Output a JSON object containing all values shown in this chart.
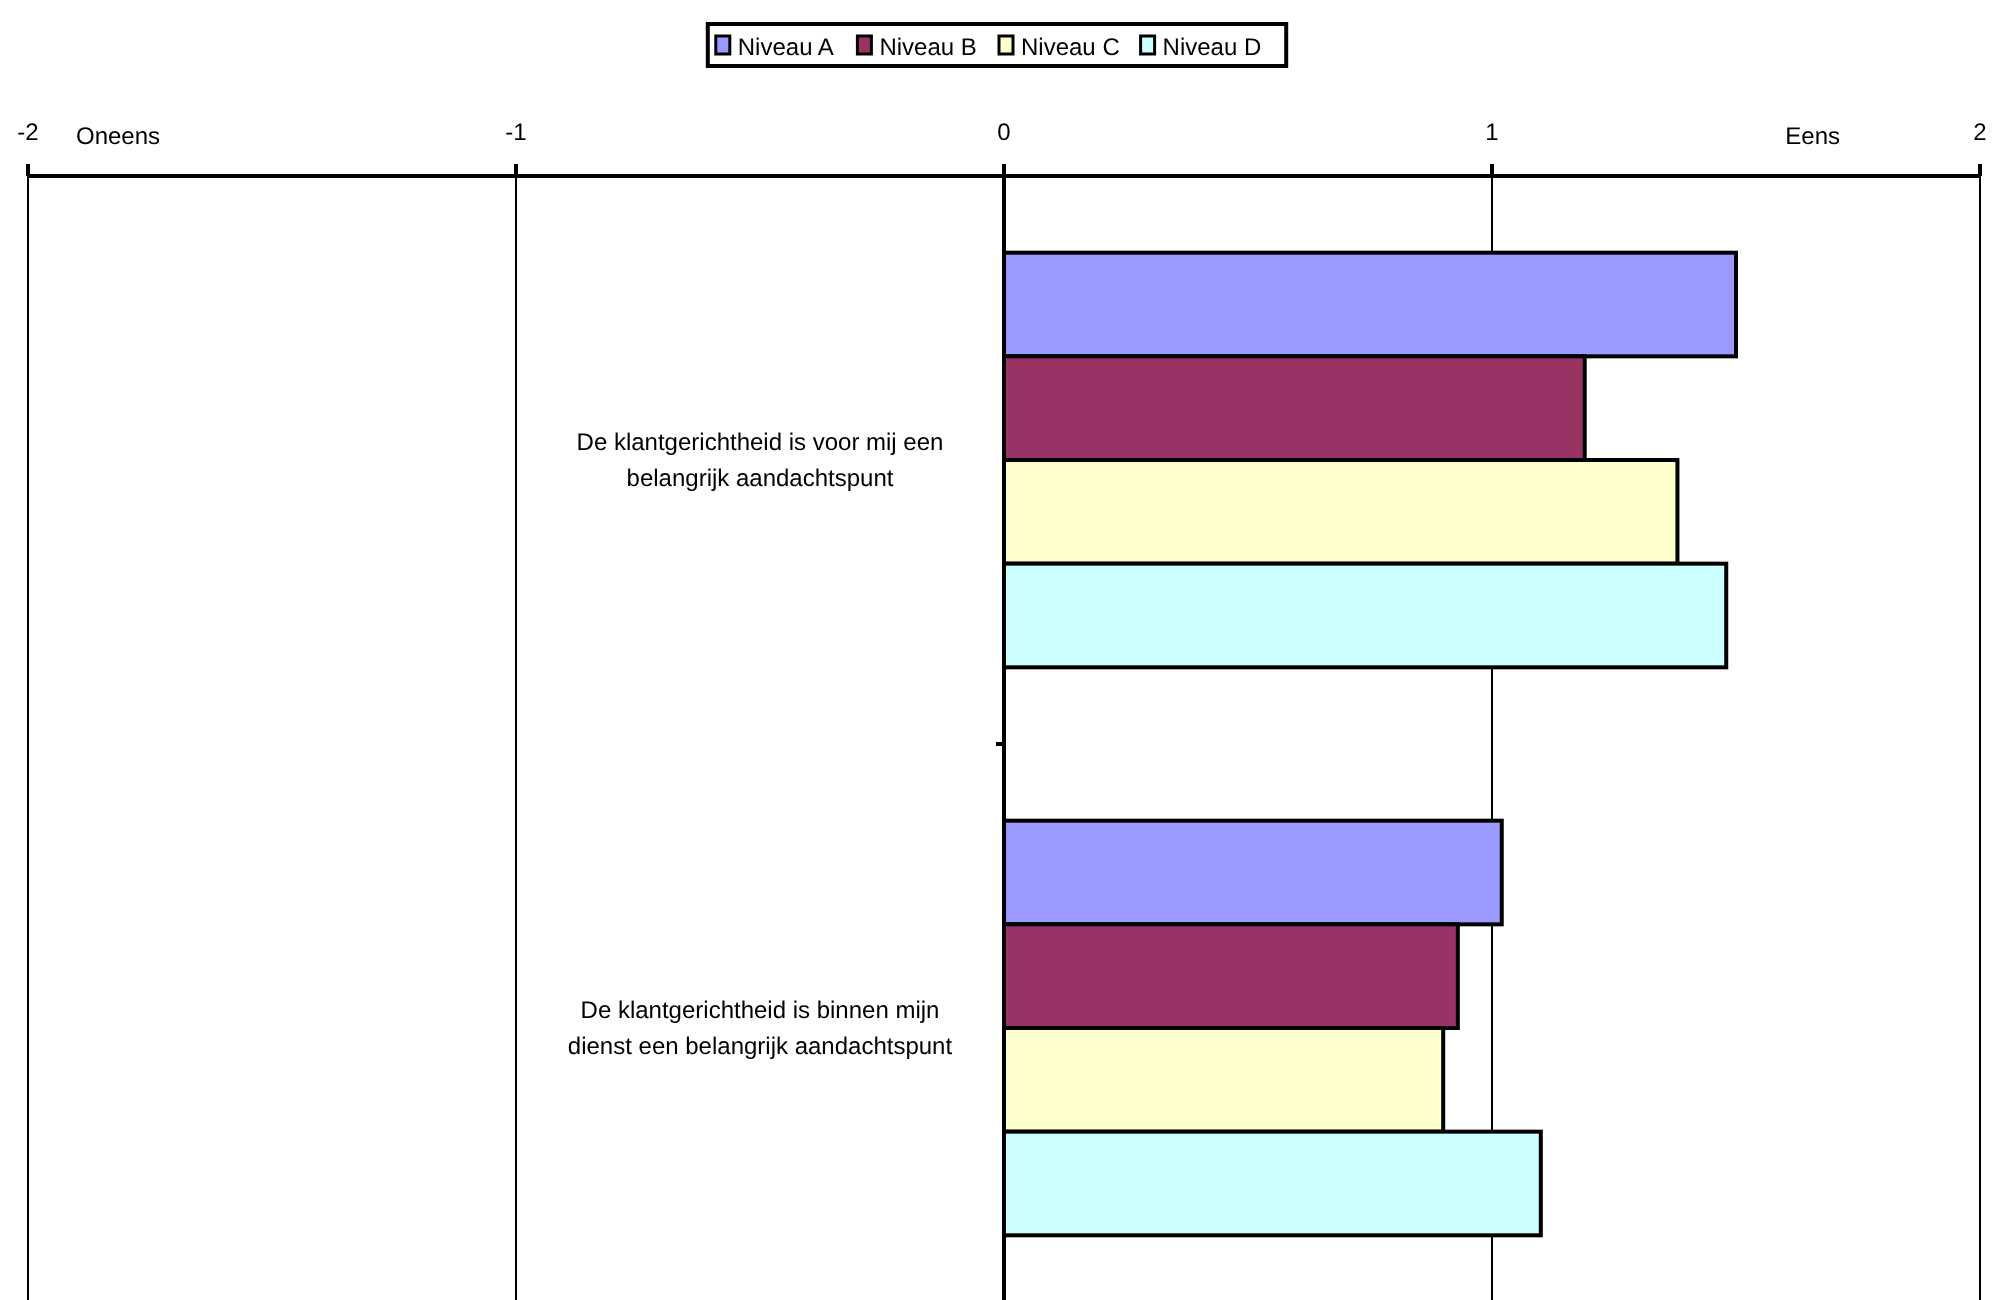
{
  "chart_data": {
    "type": "bar",
    "orientation": "horizontal",
    "categories": [
      "De klantgerichtheid is voor mij een belangrijk aandachtspunt",
      "De klantgerichtheid is binnen mijn dienst een belangrijk aandachtspunt"
    ],
    "series": [
      {
        "name": "Niveau A",
        "color": "#9999ff",
        "values": [
          1.5,
          1.02
        ]
      },
      {
        "name": "Niveau B",
        "color": "#993366",
        "values": [
          1.19,
          0.93
        ]
      },
      {
        "name": "Niveau C",
        "color": "#ffffcc",
        "values": [
          1.38,
          0.9
        ]
      },
      {
        "name": "Niveau D",
        "color": "#ccffff",
        "values": [
          1.48,
          1.1
        ]
      }
    ],
    "xlim": [
      -2,
      2
    ],
    "xticks": [
      -2,
      -1,
      0,
      1,
      2
    ],
    "grid": "x",
    "legend": "top",
    "annotations": [
      "Oneens",
      "Eens"
    ]
  }
}
